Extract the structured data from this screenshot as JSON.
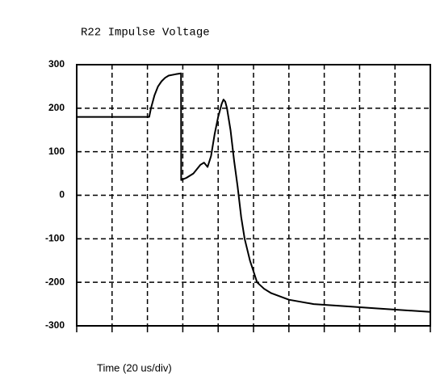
{
  "chart_data": {
    "type": "line",
    "title": "R22 Impulse Voltage",
    "x_label": "Time (20 us/div)",
    "x": [
      0,
      41,
      42,
      44,
      46,
      48,
      50,
      52,
      56,
      59,
      59.1,
      62,
      66,
      70,
      72,
      74,
      76,
      78,
      80,
      82,
      83,
      84,
      85,
      87,
      89,
      91,
      93,
      95,
      98,
      102,
      106,
      110,
      120,
      134,
      152,
      170,
      200
    ],
    "series": [
      {
        "color": "#000000",
        "values": [
          180,
          180,
          200,
          230,
          250,
          262,
          270,
          275,
          278,
          280,
          35,
          40,
          50,
          70,
          75,
          65,
          90,
          140,
          180,
          210,
          220,
          215,
          200,
          150,
          80,
          20,
          -50,
          -100,
          -150,
          -200,
          -215,
          -225,
          -240,
          -250,
          -255,
          -260,
          -268
        ]
      }
    ],
    "xlim": [
      0,
      200
    ],
    "xticks": [
      0,
      20,
      40,
      60,
      80,
      100,
      120,
      140,
      160,
      180,
      200
    ],
    "ylim": [
      -300,
      300
    ],
    "yticks": [
      300,
      200,
      100,
      0,
      -100,
      -200,
      -300
    ],
    "grid": true
  }
}
